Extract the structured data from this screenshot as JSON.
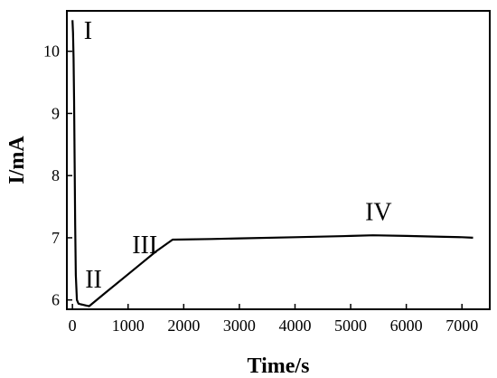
{
  "chart_data": {
    "type": "line",
    "xlabel": "Time/s",
    "ylabel": "I/mA",
    "xlim": [
      -100,
      7500
    ],
    "ylim": [
      5.85,
      10.65
    ],
    "x_ticks": [
      0,
      1000,
      2000,
      3000,
      4000,
      5000,
      6000,
      7000
    ],
    "y_ticks": [
      6,
      7,
      8,
      9,
      10
    ],
    "grid": false,
    "line_color": "#000000",
    "series": [
      {
        "x": [
          0,
          10,
          20,
          30,
          40,
          50,
          60,
          80,
          110,
          150,
          200,
          250,
          300,
          600,
          900,
          1200,
          1500,
          1800,
          2500,
          3000,
          4000,
          5000,
          5400,
          6000,
          6500,
          7000,
          7200
        ],
        "y": [
          10.5,
          10.3,
          9.9,
          9.2,
          8.2,
          7.2,
          6.4,
          6.0,
          5.94,
          5.93,
          5.92,
          5.91,
          5.9,
          6.12,
          6.34,
          6.56,
          6.78,
          6.97,
          6.98,
          6.99,
          7.01,
          7.03,
          7.04,
          7.03,
          7.02,
          7.01,
          7.0
        ]
      }
    ],
    "annotations": [
      {
        "text": "I",
        "x": 280,
        "y": 10.2
      },
      {
        "text": "II",
        "x": 380,
        "y": 6.2
      },
      {
        "text": "III",
        "x": 1300,
        "y": 6.75
      },
      {
        "text": "IV",
        "x": 5500,
        "y": 7.28
      }
    ]
  }
}
